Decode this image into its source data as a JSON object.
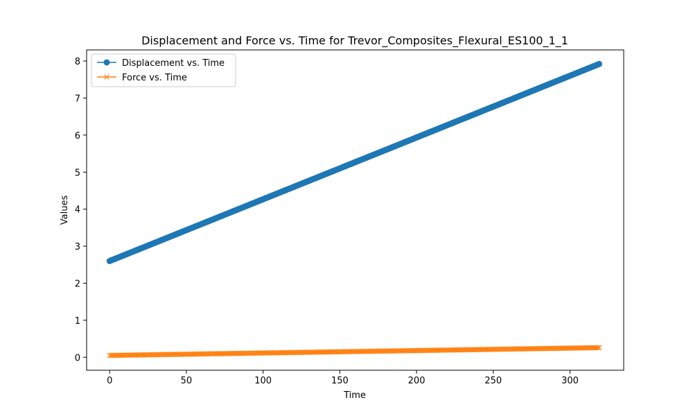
{
  "chart_data": {
    "type": "line",
    "title": "Displacement and Force vs. Time for Trevor_Composites_Flexural_ES100_1_1",
    "xlabel": "Time",
    "ylabel": "Values",
    "xlim": [
      -15,
      335
    ],
    "ylim": [
      -0.35,
      8.3
    ],
    "xticks": [
      0,
      50,
      100,
      150,
      200,
      250,
      300
    ],
    "yticks": [
      0,
      1,
      2,
      3,
      4,
      5,
      6,
      7,
      8
    ],
    "grid": false,
    "legend_position": "upper-left",
    "series": [
      {
        "name": "Displacement vs. Time",
        "color": "#1f77b4",
        "marker": "circle",
        "x_start": 0,
        "x_end": 319,
        "x_step": 1,
        "y_start": 2.6,
        "y_end": 7.92
      },
      {
        "name": "Force vs. Time",
        "color": "#ff7f0e",
        "marker": "x",
        "x_start": 0,
        "x_end": 319,
        "x_step": 1,
        "y_start": 0.05,
        "y_end": 0.26
      }
    ]
  }
}
